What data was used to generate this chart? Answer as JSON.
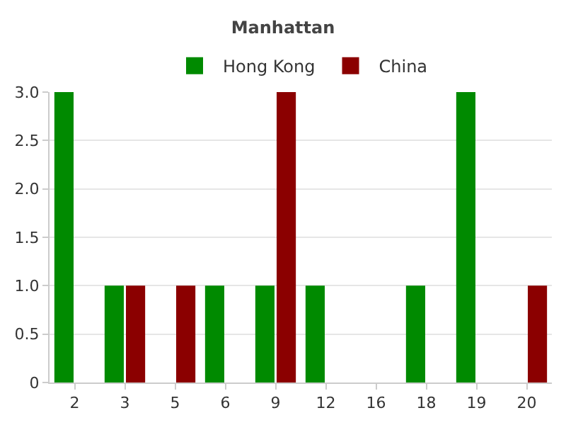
{
  "chart_data": {
    "type": "bar",
    "title": "Manhattan",
    "categories": [
      "2",
      "3",
      "5",
      "6",
      "9",
      "12",
      "16",
      "18",
      "19",
      "20"
    ],
    "series": [
      {
        "name": "Hong Kong",
        "color": "#008a00",
        "values": [
          3,
          1,
          0,
          1,
          1,
          1,
          0,
          1,
          3,
          0
        ]
      },
      {
        "name": "China",
        "color": "#8b0000",
        "values": [
          0,
          1,
          1,
          0,
          3,
          0,
          0,
          0,
          0,
          1
        ]
      }
    ],
    "ylim": [
      0,
      3
    ],
    "yticks": [
      0,
      {
        "value": 0.5,
        "label": "0.5"
      },
      {
        "value": 1,
        "label": "1.0"
      },
      {
        "value": 1.5,
        "label": "1.5"
      },
      {
        "value": 2,
        "label": "2.0"
      },
      {
        "value": 2.5,
        "label": "2.5"
      },
      {
        "value": 3,
        "label": "3.0"
      }
    ],
    "grid": "y",
    "legend": "top"
  }
}
